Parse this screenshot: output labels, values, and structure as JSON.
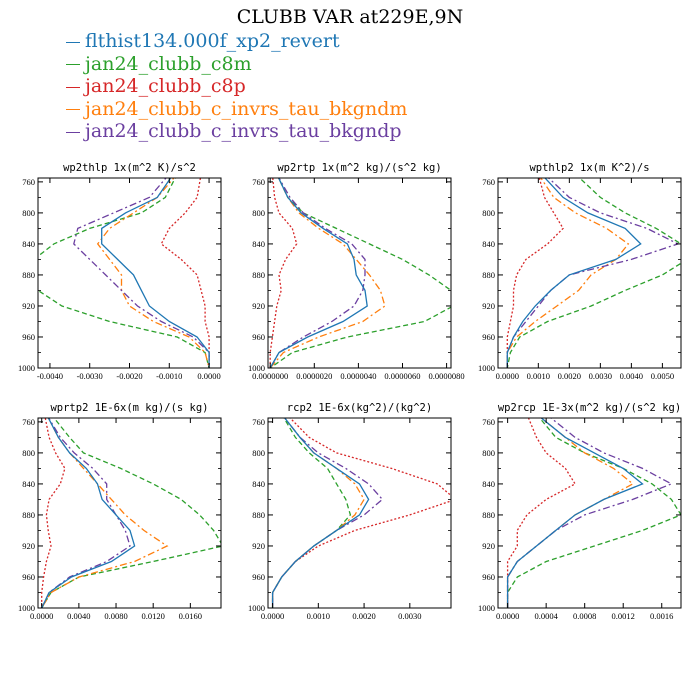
{
  "title": "CLUBB VAR at229E,9N",
  "colors": {
    "flthist": "#1f77b4",
    "c8m": "#2ca02c",
    "c8p": "#d62728",
    "bkgndm": "#ff7f0e",
    "bkgndp": "#6b3fa0"
  },
  "legend": [
    {
      "key": "flthist",
      "label": "flthist134.000f_xp2_revert",
      "style": "solid"
    },
    {
      "key": "c8m",
      "label": "jan24_clubb_c8m",
      "style": "dashed"
    },
    {
      "key": "c8p",
      "label": "jan24_clubb_c8p",
      "style": "dotted"
    },
    {
      "key": "bkgndm",
      "label": "jan24_clubb_c_invrs_tau_bkgndm",
      "style": "dashdot"
    },
    {
      "key": "bkgndp",
      "label": "jan24_clubb_c_invrs_tau_bkgndp",
      "style": "dashdot"
    }
  ],
  "chart_data": [
    {
      "type": "line",
      "title": "wp2thlp  1x(m^2 K)/s^2",
      "y": [
        750,
        780,
        800,
        820,
        840,
        860,
        880,
        900,
        920,
        940,
        960,
        980,
        1000
      ],
      "ylim": [
        1000,
        755
      ],
      "xlim": [
        -0.0043,
        0.0003
      ],
      "yticks": [
        "760",
        "800",
        "840",
        "880",
        "920",
        "960",
        "1000"
      ],
      "xticks": [
        {
          "v": -0.004,
          "label": "-0.0040"
        },
        {
          "v": -0.003,
          "label": "-0.0030"
        },
        {
          "v": -0.002,
          "label": "-0.0020"
        },
        {
          "v": -0.001,
          "label": "-0.0010"
        },
        {
          "v": 0.0,
          "label": "0.0000"
        }
      ],
      "series": [
        {
          "key": "c8m",
          "values": [
            -0.0008,
            -0.0011,
            -0.0017,
            -0.003,
            -0.0039,
            -0.0044,
            -0.0045,
            -0.0043,
            -0.0037,
            -0.0025,
            -0.0008,
            -0.0001,
            0.0
          ]
        },
        {
          "key": "c8p",
          "values": [
            -0.0002,
            -0.0003,
            -0.0006,
            -0.001,
            -0.0012,
            -0.0007,
            -0.0003,
            -0.0002,
            -0.0001,
            -0.0001,
            0.0,
            0.0,
            0.0
          ]
        },
        {
          "key": "bkgndm",
          "values": [
            -0.0008,
            -0.0013,
            -0.0019,
            -0.0025,
            -0.0028,
            -0.0025,
            -0.0022,
            -0.0022,
            -0.002,
            -0.0014,
            -0.0005,
            -0.0001,
            0.0
          ]
        },
        {
          "key": "bkgndp",
          "values": [
            -0.001,
            -0.0015,
            -0.0024,
            -0.0033,
            -0.0034,
            -0.003,
            -0.0026,
            -0.0022,
            -0.0018,
            -0.0012,
            -0.0004,
            0.0,
            0.0
          ]
        },
        {
          "key": "flthist",
          "values": [
            -0.0009,
            -0.0013,
            -0.0021,
            -0.0027,
            -0.0027,
            -0.0023,
            -0.0019,
            -0.0017,
            -0.0015,
            -0.001,
            -0.0003,
            0.0,
            0.0
          ]
        }
      ]
    },
    {
      "type": "line",
      "title": "wp2rtp  1x(m^2 kg)/(s^2 kg)",
      "y": [
        750,
        780,
        800,
        820,
        840,
        860,
        880,
        900,
        920,
        940,
        960,
        980,
        1000
      ],
      "ylim": [
        1000,
        755
      ],
      "xlim": [
        -1e-07,
        8.2e-06
      ],
      "yticks": [
        "760",
        "800",
        "840",
        "880",
        "920",
        "960",
        "1000"
      ],
      "xticks": [
        {
          "v": 0.0,
          "label": "0.0000000"
        },
        {
          "v": 2e-06,
          "label": "0.0000020"
        },
        {
          "v": 4e-06,
          "label": "0.0000040"
        },
        {
          "v": 6e-06,
          "label": "0.0000060"
        },
        {
          "v": 8e-06,
          "label": "0.0000080"
        }
      ],
      "series": [
        {
          "key": "c8m",
          "values": [
            3e-07,
            8e-07,
            1.5e-06,
            3e-06,
            4.5e-06,
            6e-06,
            7.2e-06,
            8.2e-06,
            8.3e-06,
            7e-06,
            3.5e-06,
            1e-06,
            0.0
          ]
        },
        {
          "key": "c8p",
          "values": [
            1e-07,
            2e-07,
            4e-07,
            1e-06,
            1.2e-06,
            7e-07,
            4e-07,
            5e-07,
            3e-07,
            2e-07,
            1e-07,
            0.0,
            0.0
          ]
        },
        {
          "key": "bkgndm",
          "values": [
            3e-07,
            8e-07,
            1.3e-06,
            2.2e-06,
            3.3e-06,
            3.9e-06,
            4.5e-06,
            5e-06,
            5.2e-06,
            4.2e-06,
            2.2e-06,
            6e-07,
            0.0
          ]
        },
        {
          "key": "bkgndp",
          "values": [
            3e-07,
            9e-07,
            1.5e-06,
            2.5e-06,
            3.7e-06,
            4.3e-06,
            4.3e-06,
            4.2e-06,
            3.8e-06,
            2.8e-06,
            1.5e-06,
            4e-07,
            0.0
          ]
        },
        {
          "key": "flthist",
          "values": [
            3e-07,
            8e-07,
            1.4e-06,
            2.4e-06,
            3.5e-06,
            3.8e-06,
            3.9e-06,
            4.3e-06,
            4.4e-06,
            3.3e-06,
            1.7e-06,
            4e-07,
            0.0
          ]
        }
      ]
    },
    {
      "type": "line",
      "title": "wpthlp2  1x(m K^2)/s",
      "y": [
        750,
        780,
        800,
        820,
        840,
        860,
        880,
        900,
        920,
        940,
        960,
        980,
        1000
      ],
      "ylim": [
        1000,
        755
      ],
      "xlim": [
        -0.0003,
        0.0056
      ],
      "yticks": [
        "760",
        "800",
        "840",
        "880",
        "920",
        "960",
        "1000"
      ],
      "xticks": [
        {
          "v": 0.0,
          "label": "0.0000"
        },
        {
          "v": 0.001,
          "label": "0.0010"
        },
        {
          "v": 0.002,
          "label": "0.0020"
        },
        {
          "v": 0.003,
          "label": "0.0030"
        },
        {
          "v": 0.004,
          "label": "0.0040"
        },
        {
          "v": 0.005,
          "label": "0.0050"
        }
      ],
      "series": [
        {
          "key": "c8m",
          "values": [
            0.0022,
            0.003,
            0.0038,
            0.0048,
            0.0056,
            0.0058,
            0.005,
            0.0038,
            0.0027,
            0.0013,
            0.0004,
            0.0001,
            0.0
          ]
        },
        {
          "key": "c8p",
          "values": [
            0.001,
            0.0012,
            0.0015,
            0.0018,
            0.0013,
            0.0006,
            0.0003,
            0.0002,
            0.0002,
            0.0001,
            0.0,
            0.0,
            0.0
          ]
        },
        {
          "key": "bkgndm",
          "values": [
            0.001,
            0.0015,
            0.0022,
            0.0032,
            0.0039,
            0.0035,
            0.0027,
            0.0023,
            0.0016,
            0.0009,
            0.0003,
            0.0,
            0.0
          ]
        },
        {
          "key": "bkgndp",
          "values": [
            0.0012,
            0.002,
            0.003,
            0.0045,
            0.0055,
            0.004,
            0.002,
            0.0014,
            0.001,
            0.0006,
            0.0002,
            0.0,
            0.0
          ]
        },
        {
          "key": "flthist",
          "values": [
            0.0011,
            0.0018,
            0.0026,
            0.0038,
            0.0043,
            0.0035,
            0.002,
            0.0014,
            0.0009,
            0.0005,
            0.0002,
            0.0,
            0.0
          ]
        }
      ]
    },
    {
      "type": "line",
      "title": "wprtp2  1E-6x(m kg)/(s kg)",
      "y": [
        750,
        780,
        800,
        820,
        840,
        860,
        880,
        900,
        920,
        940,
        960,
        980,
        1000
      ],
      "ylim": [
        1000,
        755
      ],
      "xlim": [
        -0.0004,
        0.0193
      ],
      "yticks": [
        "760",
        "800",
        "840",
        "880",
        "920",
        "960",
        "1000"
      ],
      "xticks": [
        {
          "v": 0.0,
          "label": "0.0000"
        },
        {
          "v": 0.004,
          "label": "0.0040"
        },
        {
          "v": 0.008,
          "label": "0.0080"
        },
        {
          "v": 0.012,
          "label": "0.0120"
        },
        {
          "v": 0.016,
          "label": "0.0160"
        }
      ],
      "series": [
        {
          "key": "c8m",
          "values": [
            0.001,
            0.003,
            0.0045,
            0.0085,
            0.012,
            0.015,
            0.017,
            0.0185,
            0.0195,
            0.012,
            0.004,
            0.001,
            0.0
          ]
        },
        {
          "key": "c8p",
          "values": [
            0.0003,
            0.0008,
            0.0015,
            0.0025,
            0.002,
            0.0008,
            0.0005,
            0.0007,
            0.001,
            0.0005,
            0.0002,
            0.0,
            0.0
          ]
        },
        {
          "key": "bkgndm",
          "values": [
            0.0005,
            0.0018,
            0.003,
            0.0045,
            0.006,
            0.0075,
            0.009,
            0.011,
            0.0135,
            0.01,
            0.004,
            0.001,
            0.0
          ]
        },
        {
          "key": "bkgndp",
          "values": [
            0.0005,
            0.002,
            0.0035,
            0.0055,
            0.007,
            0.007,
            0.008,
            0.009,
            0.0095,
            0.007,
            0.003,
            0.0008,
            0.0
          ]
        },
        {
          "key": "flthist",
          "values": [
            0.0005,
            0.0018,
            0.003,
            0.0048,
            0.006,
            0.0065,
            0.008,
            0.0095,
            0.01,
            0.0075,
            0.0032,
            0.0008,
            0.0
          ]
        }
      ]
    },
    {
      "type": "line",
      "title": "rcp2  1E-6x(kg^2)/(kg^2)",
      "y": [
        750,
        780,
        800,
        820,
        840,
        860,
        880,
        900,
        920,
        940,
        960,
        980,
        1000
      ],
      "ylim": [
        1000,
        755
      ],
      "xlim": [
        -0.0001,
        0.0039
      ],
      "yticks": [
        "760",
        "800",
        "840",
        "880",
        "920",
        "960",
        "1000"
      ],
      "xticks": [
        {
          "v": 0.0,
          "label": "0.0000"
        },
        {
          "v": 0.001,
          "label": "0.0010"
        },
        {
          "v": 0.002,
          "label": "0.0020"
        },
        {
          "v": 0.003,
          "label": "0.0030"
        }
      ],
      "series": [
        {
          "key": "c8m",
          "values": [
            0.0002,
            0.0005,
            0.0008,
            0.0012,
            0.0014,
            0.0016,
            0.0017,
            0.0014,
            0.0009,
            0.0005,
            0.0002,
            0.0,
            0.0
          ]
        },
        {
          "key": "c8p",
          "values": [
            0.0003,
            0.0008,
            0.0014,
            0.0026,
            0.0036,
            0.004,
            0.003,
            0.0018,
            0.001,
            0.0005,
            0.0002,
            0.0,
            0.0
          ]
        },
        {
          "key": "bkgndm",
          "values": [
            0.0002,
            0.0006,
            0.0009,
            0.0014,
            0.0018,
            0.002,
            0.0018,
            0.0014,
            0.0009,
            0.0005,
            0.0002,
            0.0,
            0.0
          ]
        },
        {
          "key": "bkgndp",
          "values": [
            0.0002,
            0.0006,
            0.001,
            0.0016,
            0.0021,
            0.0024,
            0.002,
            0.0014,
            0.0009,
            0.0005,
            0.0002,
            0.0,
            0.0
          ]
        },
        {
          "key": "flthist",
          "values": [
            0.0002,
            0.0006,
            0.0009,
            0.0014,
            0.0019,
            0.0021,
            0.0019,
            0.0014,
            0.0009,
            0.0005,
            0.0002,
            0.0,
            0.0
          ]
        }
      ]
    },
    {
      "type": "line",
      "title": "wp2rcp  1E-3x(m^2 kg)/(s^2 kg)",
      "y": [
        750,
        780,
        800,
        820,
        840,
        860,
        880,
        900,
        920,
        940,
        960,
        980,
        1000
      ],
      "ylim": [
        1000,
        755
      ],
      "xlim": [
        -0.0001,
        0.0018
      ],
      "yticks": [
        "760",
        "800",
        "840",
        "880",
        "920",
        "960",
        "1000"
      ],
      "xticks": [
        {
          "v": 0.0,
          "label": "0.0000"
        },
        {
          "v": 0.0004,
          "label": "0.0004"
        },
        {
          "v": 0.0008,
          "label": "0.0008"
        },
        {
          "v": 0.0012,
          "label": "0.0012"
        },
        {
          "v": 0.0016,
          "label": "0.0016"
        }
      ],
      "series": [
        {
          "key": "c8m",
          "values": [
            0.0003,
            0.0005,
            0.0008,
            0.0012,
            0.0015,
            0.0017,
            0.0018,
            0.0014,
            0.0009,
            0.0004,
            0.0001,
            0.0,
            0.0
          ]
        },
        {
          "key": "c8p",
          "values": [
            0.0002,
            0.0003,
            0.0004,
            0.0006,
            0.0007,
            0.0004,
            0.0002,
            0.0001,
            0.0001,
            0.0,
            0.0,
            0.0,
            0.0
          ]
        },
        {
          "key": "bkgndm",
          "values": [
            0.0003,
            0.0006,
            0.0008,
            0.0011,
            0.0013,
            0.001,
            0.0007,
            0.0005,
            0.0003,
            0.0001,
            0.0,
            0.0,
            0.0
          ]
        },
        {
          "key": "bkgndp",
          "values": [
            0.0004,
            0.0007,
            0.001,
            0.0014,
            0.0017,
            0.0013,
            0.0008,
            0.0005,
            0.0003,
            0.0001,
            0.0,
            0.0,
            0.0
          ]
        },
        {
          "key": "flthist",
          "values": [
            0.0003,
            0.0006,
            0.0009,
            0.0012,
            0.0014,
            0.001,
            0.0007,
            0.0005,
            0.0003,
            0.0001,
            0.0,
            0.0,
            0.0
          ]
        }
      ]
    }
  ]
}
